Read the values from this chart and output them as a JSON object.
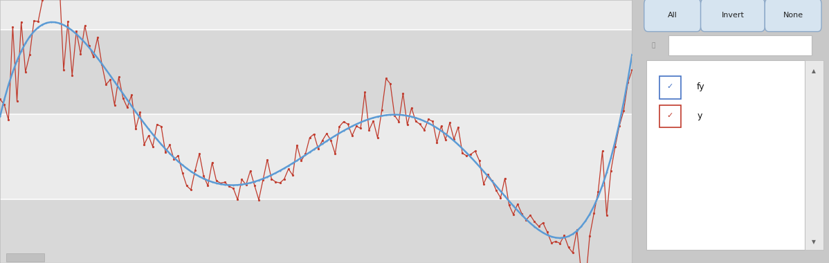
{
  "x_min": -2.55,
  "x_max": 3.05,
  "y_min": -7.5,
  "y_max": 23.5,
  "n_points": 150,
  "noise_std": 1.2,
  "seed": 7,
  "line_color_fy": "#5B9BD5",
  "line_color_y": "#C0392B",
  "dot_color_y": "#C0392B",
  "bg_dark": "#DCDCDC",
  "bg_light": "#EBEBEB",
  "bg_outer": "#D0D0D0",
  "yticks": [
    0,
    10,
    20
  ],
  "xticks": [
    -2,
    -1,
    0,
    1,
    2,
    3
  ],
  "button_labels": [
    "All",
    "Invert",
    "None"
  ],
  "legend_labels": [
    "fy",
    "y"
  ],
  "legend_check_colors": [
    "#4472C4",
    "#C0392B"
  ],
  "control_x": [
    -2.5,
    -2.0,
    -1.8,
    -1.3,
    -1.0,
    -0.5,
    0.0,
    0.5,
    0.8,
    1.1,
    1.5,
    2.0,
    2.3,
    2.55,
    2.8,
    3.0
  ],
  "control_y": [
    14.0,
    17.2,
    17.0,
    11.5,
    8.5,
    2.5,
    1.5,
    3.5,
    10.5,
    10.8,
    8.5,
    1.5,
    -2.5,
    -5.5,
    -6.0,
    19.0
  ]
}
